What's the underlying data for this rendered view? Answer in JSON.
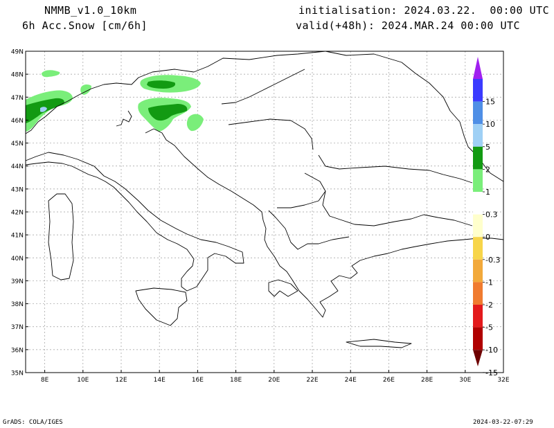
{
  "header": {
    "model": "NMMB_v1.0_10km",
    "field": "6h Acc.Snow [cm/6h]",
    "init": "initialisation: 2024.03.22.  00:00 UTC",
    "valid": "valid(+48h): 2024.MAR.24 00:00 UTC"
  },
  "map": {
    "lat_labels": [
      "49N",
      "48N",
      "47N",
      "46N",
      "45N",
      "44N",
      "43N",
      "42N",
      "41N",
      "40N",
      "39N",
      "38N",
      "37N",
      "36N",
      "35N"
    ],
    "lon_labels": [
      "8E",
      "10E",
      "12E",
      "14E",
      "16E",
      "18E",
      "20E",
      "22E",
      "24E",
      "26E",
      "28E",
      "30E",
      "32E"
    ],
    "lat_range": [
      35,
      49
    ],
    "lon_range": [
      7,
      32
    ],
    "grid": true
  },
  "colorbar": {
    "labels": [
      "15",
      "10",
      "5",
      "2",
      "1",
      "0.3",
      "0",
      "-0.3",
      "-1",
      "-2",
      "-5",
      "-10",
      "-15"
    ],
    "colors": [
      "#a020f0",
      "#3b3bff",
      "#4f8fe6",
      "#9fd0f5",
      "#129a12",
      "#7aee7a",
      "#ffffff",
      "#ffffcc",
      "#f7d54a",
      "#f2a93b",
      "#f07b30",
      "#e31a1c",
      "#b00000",
      "#6e0000"
    ]
  },
  "footer": {
    "left": "GrADS: COLA/IGES",
    "right": "2024-03-22-07:29"
  }
}
